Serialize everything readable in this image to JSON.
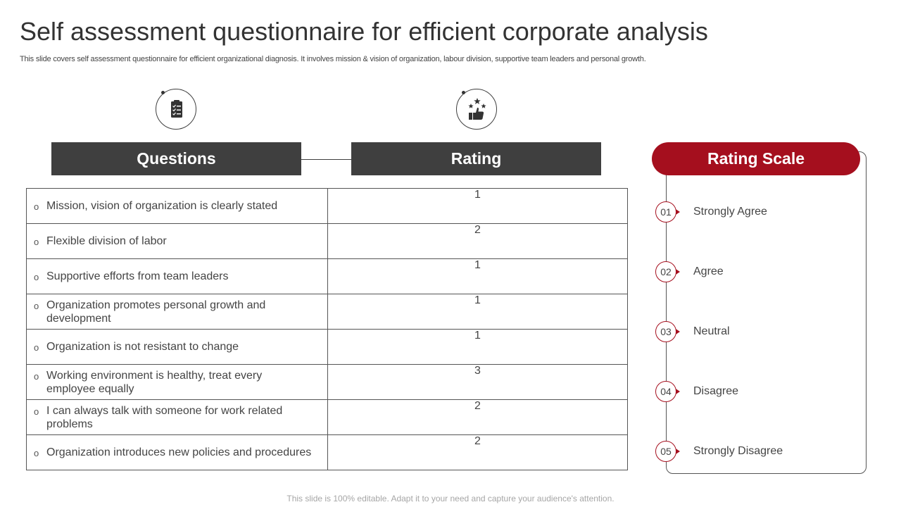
{
  "title": "Self assessment questionnaire for efficient corporate analysis",
  "subtitle": "This slide covers self assessment questionnaire for efficient organizational diagnosis. It involves mission & vision of organization, labour division, supportive team leaders and personal growth.",
  "headers": {
    "questions": "Questions",
    "rating": "Rating",
    "rating_scale": "Rating Scale"
  },
  "icons": {
    "questions": "checklist-icon",
    "rating": "thumbs-up-stars-icon"
  },
  "rows": [
    {
      "question": "Mission, vision of organization is clearly stated",
      "rating": "1"
    },
    {
      "question": "Flexible division of labor",
      "rating": "2"
    },
    {
      "question": "Supportive efforts from team leaders",
      "rating": "1"
    },
    {
      "question": "Organization promotes personal growth and development",
      "rating": "1"
    },
    {
      "question": "Organization is not resistant to change",
      "rating": "1"
    },
    {
      "question": "Working environment is healthy, treat every employee equally",
      "rating": "3"
    },
    {
      "question": "I can always talk with someone for work related problems",
      "rating": "2"
    },
    {
      "question": "Organization introduces new policies and procedures",
      "rating": "2"
    }
  ],
  "bullet": "o",
  "scale": [
    {
      "num": "01",
      "label": "Strongly Agree"
    },
    {
      "num": "02",
      "label": "Agree"
    },
    {
      "num": "03",
      "label": "Neutral"
    },
    {
      "num": "04",
      "label": "Disagree"
    },
    {
      "num": "05",
      "label": "Strongly Disagree"
    }
  ],
  "colors": {
    "accent": "#a50f1e",
    "header_dark": "#3f3f3f"
  },
  "footer": "This slide is 100% editable. Adapt it to your need and capture your audience's attention."
}
